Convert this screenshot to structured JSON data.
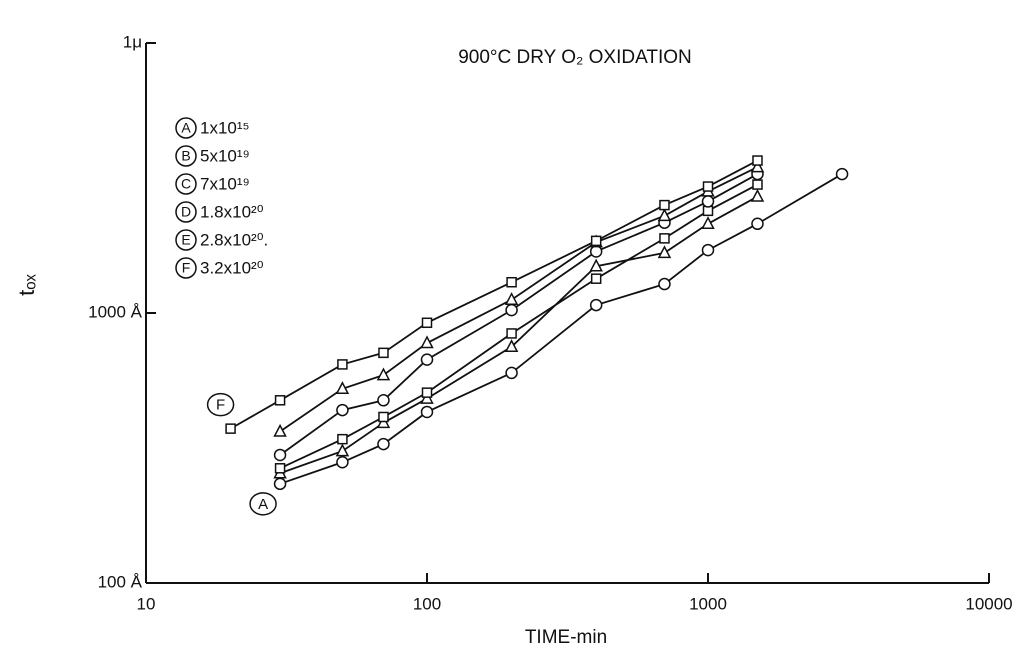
{
  "chart_data": {
    "type": "line",
    "title": "900°C DRY O₂ OXIDATION",
    "xlabel": "TIME-min",
    "ylabel": "tₒₓ",
    "xscale": "log",
    "yscale": "log",
    "xlim": [
      10,
      10000
    ],
    "ylim": [
      100,
      10000
    ],
    "xticks": [
      10,
      100,
      1000,
      10000
    ],
    "yticks": [
      {
        "value": 100,
        "label": "100 Å"
      },
      {
        "value": 1000,
        "label": "1000 Å"
      },
      {
        "value": 10000,
        "label": "1μ"
      }
    ],
    "color": "#111111",
    "series": [
      {
        "letter": "A",
        "name": "1x10¹⁵",
        "marker": "circle",
        "x": [
          30,
          50,
          70,
          100,
          200,
          400,
          700,
          1000,
          1500,
          3000
        ],
        "values": [
          233,
          280,
          327,
          430,
          600,
          1070,
          1280,
          1710,
          2140,
          3270
        ]
      },
      {
        "letter": "B",
        "name": "5x10¹⁹",
        "marker": "triangle",
        "x": [
          30,
          50,
          70,
          100,
          200,
          400,
          700,
          1000,
          1500
        ],
        "values": [
          255,
          308,
          392,
          482,
          750,
          1490,
          1670,
          2140,
          2700
        ]
      },
      {
        "letter": "C",
        "name": "7x10¹⁹",
        "marker": "square",
        "x": [
          30,
          50,
          70,
          100,
          200,
          400,
          700,
          1000,
          1500
        ],
        "values": [
          266,
          341,
          412,
          507,
          840,
          1340,
          1890,
          2390,
          2990
        ]
      },
      {
        "letter": "D",
        "name": "1.8x10²⁰",
        "marker": "circle",
        "x": [
          30,
          50,
          70,
          100,
          200,
          400,
          700,
          1000,
          1500
        ],
        "values": [
          298,
          437,
          475,
          672,
          1025,
          1690,
          2160,
          2590,
          3270
        ]
      },
      {
        "letter": "E",
        "name": "2.8x10²⁰.",
        "marker": "triangle",
        "x": [
          30,
          50,
          70,
          100,
          200,
          400,
          700,
          1000,
          1500
        ],
        "values": [
          364,
          524,
          589,
          774,
          1120,
          1830,
          2290,
          2820,
          3470
        ]
      },
      {
        "letter": "F",
        "name": "3.2x10²⁰",
        "marker": "square",
        "x": [
          20,
          30,
          50,
          70,
          100,
          200,
          400,
          700,
          1000,
          1500
        ],
        "values": [
          373,
          475,
          645,
          712,
          920,
          1300,
          1850,
          2510,
          2940,
          3670
        ]
      }
    ]
  }
}
